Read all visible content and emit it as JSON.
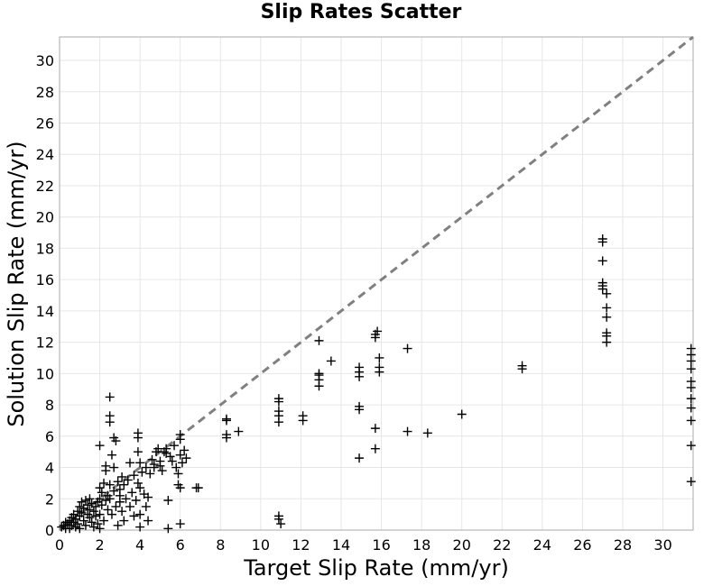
{
  "chart_data": {
    "type": "scatter",
    "title": "Slip Rates Scatter",
    "xlabel": "Target Slip Rate (mm/yr)",
    "ylabel": "Solution Slip Rate (mm/yr)",
    "xlim": [
      0,
      31.5
    ],
    "ylim": [
      0,
      31.5
    ],
    "x_ticks": [
      0,
      2,
      4,
      6,
      8,
      10,
      12,
      14,
      16,
      18,
      20,
      22,
      24,
      26,
      28,
      30
    ],
    "y_ticks": [
      0,
      2,
      4,
      6,
      8,
      10,
      12,
      14,
      16,
      18,
      20,
      22,
      24,
      26,
      28,
      30
    ],
    "grid": true,
    "marker": "plus",
    "marker_color": "#000000",
    "reference_line": {
      "style": "dashed",
      "color": "#808080",
      "from": [
        0,
        0
      ],
      "to": [
        31.5,
        31.5
      ]
    },
    "series": [
      {
        "points": [
          [
            0.1,
            0.2
          ],
          [
            0.2,
            0.3
          ],
          [
            0.3,
            0.5
          ],
          [
            0.3,
            0.1
          ],
          [
            0.4,
            0.4
          ],
          [
            0.5,
            0.6
          ],
          [
            0.5,
            0.1
          ],
          [
            0.6,
            0.3
          ],
          [
            0.6,
            0.8
          ],
          [
            0.7,
            0.5
          ],
          [
            0.7,
            1.0
          ],
          [
            0.8,
            0.2
          ],
          [
            0.8,
            0.7
          ],
          [
            0.9,
            1.2
          ],
          [
            0.9,
            0.4
          ],
          [
            1.0,
            0.9
          ],
          [
            1.0,
            1.5
          ],
          [
            1.0,
            0.1
          ],
          [
            1.1,
            1.1
          ],
          [
            1.1,
            1.8
          ],
          [
            1.2,
            0.6
          ],
          [
            1.2,
            1.4
          ],
          [
            1.3,
            1.9
          ],
          [
            1.3,
            0.3
          ],
          [
            1.4,
            1.0
          ],
          [
            1.4,
            1.6
          ],
          [
            1.5,
            0.8
          ],
          [
            1.5,
            1.3
          ],
          [
            1.5,
            2.0
          ],
          [
            1.6,
            0.5
          ],
          [
            1.6,
            1.7
          ],
          [
            1.7,
            1.2
          ],
          [
            1.7,
            0.2
          ],
          [
            1.8,
            1.5
          ],
          [
            1.8,
            0.9
          ],
          [
            1.9,
            1.8
          ],
          [
            1.9,
            0.4
          ],
          [
            2.0,
            2.0
          ],
          [
            2.0,
            1.0
          ],
          [
            2.0,
            0.1
          ],
          [
            2.0,
            5.4
          ],
          [
            2.0,
            2.7
          ],
          [
            2.1,
            1.6
          ],
          [
            2.1,
            2.4
          ],
          [
            2.2,
            0.6
          ],
          [
            2.2,
            3.0
          ],
          [
            2.3,
            1.9
          ],
          [
            2.3,
            4.1
          ],
          [
            2.3,
            3.8
          ],
          [
            2.4,
            2.2
          ],
          [
            2.4,
            1.3
          ],
          [
            2.5,
            8.5
          ],
          [
            2.5,
            7.3
          ],
          [
            2.5,
            6.9
          ],
          [
            2.5,
            2.0
          ],
          [
            2.5,
            2.9
          ],
          [
            2.6,
            1.0
          ],
          [
            2.6,
            4.8
          ],
          [
            2.7,
            4.0
          ],
          [
            2.7,
            2.5
          ],
          [
            2.7,
            5.9
          ],
          [
            2.8,
            5.7
          ],
          [
            2.8,
            1.5
          ],
          [
            2.9,
            3.1
          ],
          [
            2.9,
            0.3
          ],
          [
            3.0,
            2.2
          ],
          [
            3.0,
            2.6
          ],
          [
            3.0,
            1.8
          ],
          [
            3.1,
            3.4
          ],
          [
            3.1,
            1.2
          ],
          [
            3.2,
            2.9
          ],
          [
            3.2,
            0.6
          ],
          [
            3.3,
            2.0
          ],
          [
            3.4,
            3.2
          ],
          [
            3.5,
            4.3
          ],
          [
            3.5,
            1.5
          ],
          [
            3.6,
            2.4
          ],
          [
            3.7,
            3.5
          ],
          [
            3.7,
            0.9
          ],
          [
            3.8,
            1.9
          ],
          [
            3.9,
            6.2
          ],
          [
            3.9,
            5.9
          ],
          [
            3.9,
            5.0
          ],
          [
            3.9,
            3.0
          ],
          [
            4.0,
            4.3
          ],
          [
            4.0,
            2.7
          ],
          [
            4.0,
            0.2
          ],
          [
            4.0,
            1.0
          ],
          [
            4.1,
            3.7
          ],
          [
            4.2,
            2.3
          ],
          [
            4.3,
            4.0
          ],
          [
            4.3,
            1.5
          ],
          [
            4.4,
            0.6
          ],
          [
            4.4,
            2.1
          ],
          [
            4.5,
            3.6
          ],
          [
            4.6,
            4.5
          ],
          [
            4.7,
            4.2
          ],
          [
            4.7,
            4.0
          ],
          [
            4.8,
            5.0
          ],
          [
            4.9,
            5.2
          ],
          [
            5.0,
            4.1
          ],
          [
            5.0,
            4.4
          ],
          [
            5.1,
            3.8
          ],
          [
            5.2,
            5.0
          ],
          [
            5.3,
            4.9
          ],
          [
            5.3,
            5.2
          ],
          [
            5.4,
            1.9
          ],
          [
            5.4,
            0.1
          ],
          [
            5.5,
            4.7
          ],
          [
            5.6,
            4.4
          ],
          [
            5.7,
            5.4
          ],
          [
            5.8,
            4.0
          ],
          [
            5.9,
            2.9
          ],
          [
            5.9,
            3.6
          ],
          [
            6.0,
            6.1
          ],
          [
            6.0,
            5.8
          ],
          [
            6.0,
            4.8
          ],
          [
            6.0,
            0.4
          ],
          [
            6.0,
            2.7
          ],
          [
            6.1,
            4.3
          ],
          [
            6.2,
            5.1
          ],
          [
            6.3,
            4.6
          ],
          [
            6.8,
            2.7
          ],
          [
            6.9,
            2.7
          ],
          [
            8.3,
            7.1
          ],
          [
            8.3,
            7.0
          ],
          [
            8.3,
            6.1
          ],
          [
            8.3,
            5.9
          ],
          [
            8.9,
            6.3
          ],
          [
            10.9,
            8.4
          ],
          [
            10.9,
            8.2
          ],
          [
            10.9,
            7.6
          ],
          [
            10.9,
            7.3
          ],
          [
            10.9,
            6.9
          ],
          [
            10.9,
            0.9
          ],
          [
            10.9,
            0.7
          ],
          [
            11.0,
            0.4
          ],
          [
            12.1,
            7.3
          ],
          [
            12.1,
            7.0
          ],
          [
            12.9,
            12.1
          ],
          [
            12.9,
            10.0
          ],
          [
            12.9,
            9.9
          ],
          [
            12.9,
            9.6
          ],
          [
            12.9,
            9.2
          ],
          [
            13.5,
            10.8
          ],
          [
            14.9,
            10.4
          ],
          [
            14.9,
            10.1
          ],
          [
            14.9,
            9.8
          ],
          [
            14.9,
            7.9
          ],
          [
            14.9,
            7.7
          ],
          [
            14.9,
            4.6
          ],
          [
            15.7,
            12.5
          ],
          [
            15.7,
            12.3
          ],
          [
            15.7,
            6.5
          ],
          [
            15.7,
            5.2
          ],
          [
            15.8,
            12.7
          ],
          [
            15.9,
            11.0
          ],
          [
            15.9,
            10.4
          ],
          [
            15.9,
            10.1
          ],
          [
            17.3,
            11.6
          ],
          [
            17.3,
            6.3
          ],
          [
            18.3,
            6.2
          ],
          [
            20.0,
            7.4
          ],
          [
            23.0,
            10.5
          ],
          [
            23.0,
            10.3
          ],
          [
            27.0,
            18.6
          ],
          [
            27.0,
            18.4
          ],
          [
            27.0,
            17.2
          ],
          [
            27.0,
            15.8
          ],
          [
            27.0,
            15.6
          ],
          [
            27.0,
            15.4
          ],
          [
            27.2,
            15.1
          ],
          [
            27.2,
            14.2
          ],
          [
            27.2,
            13.6
          ],
          [
            27.2,
            12.6
          ],
          [
            27.2,
            12.4
          ],
          [
            27.2,
            12.0
          ],
          [
            31.4,
            11.6
          ],
          [
            31.4,
            11.2
          ],
          [
            31.4,
            10.8
          ],
          [
            31.4,
            10.3
          ],
          [
            31.4,
            9.5
          ],
          [
            31.4,
            9.1
          ],
          [
            31.4,
            8.4
          ],
          [
            31.4,
            7.8
          ],
          [
            31.4,
            7.0
          ],
          [
            31.4,
            5.4
          ],
          [
            31.4,
            3.1
          ]
        ]
      }
    ]
  }
}
